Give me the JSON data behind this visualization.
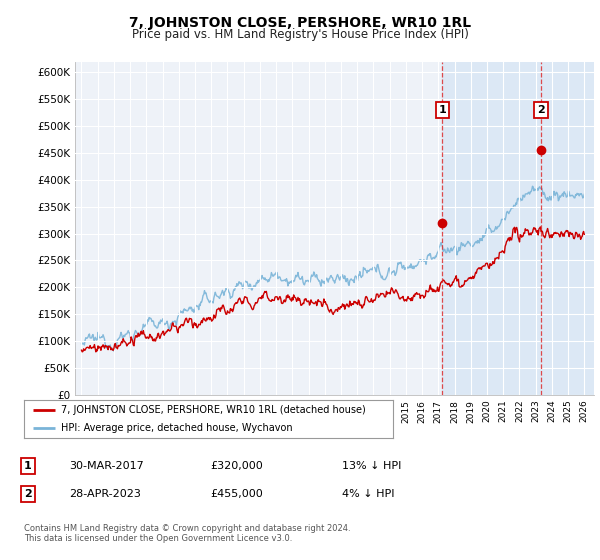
{
  "title": "7, JOHNSTON CLOSE, PERSHORE, WR10 1RL",
  "subtitle": "Price paid vs. HM Land Registry's House Price Index (HPI)",
  "ylim": [
    0,
    620000
  ],
  "yticks": [
    0,
    50000,
    100000,
    150000,
    200000,
    250000,
    300000,
    350000,
    400000,
    450000,
    500000,
    550000,
    600000
  ],
  "ytick_labels": [
    "£0",
    "£50K",
    "£100K",
    "£150K",
    "£200K",
    "£250K",
    "£300K",
    "£350K",
    "£400K",
    "£450K",
    "£500K",
    "£550K",
    "£600K"
  ],
  "x_start_year": 1995,
  "x_end_year": 2026,
  "hpi_color": "#7ab4d8",
  "price_color": "#cc0000",
  "marker_color": "#cc0000",
  "bg_color": "#eef2f8",
  "highlight_bg": "#dce8f5",
  "legend_label_red": "7, JOHNSTON CLOSE, PERSHORE, WR10 1RL (detached house)",
  "legend_label_blue": "HPI: Average price, detached house, Wychavon",
  "annotation1_date": "30-MAR-2017",
  "annotation1_price": "£320,000",
  "annotation1_hpi": "13% ↓ HPI",
  "annotation2_date": "28-APR-2023",
  "annotation2_price": "£455,000",
  "annotation2_hpi": "4% ↓ HPI",
  "footnote": "Contains HM Land Registry data © Crown copyright and database right 2024.\nThis data is licensed under the Open Government Licence v3.0.",
  "sale1_year": 2017.25,
  "sale1_price": 320000,
  "sale2_year": 2023.33,
  "sale2_price": 455000,
  "vline1_year": 2017.25,
  "vline2_year": 2023.33
}
